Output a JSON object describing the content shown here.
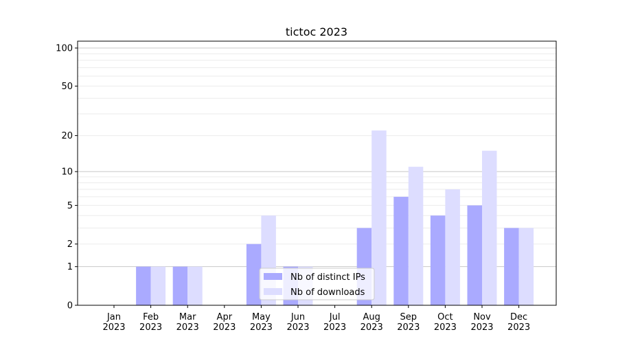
{
  "chart_data": {
    "type": "bar",
    "title": "tictoc 2023",
    "xlabel": "",
    "ylabel": "",
    "yscale": "log(1+y)",
    "ylim": [
      0,
      110
    ],
    "yticks": [
      0,
      1,
      2,
      5,
      10,
      20,
      50,
      100
    ],
    "grid": true,
    "legend_position": "bottom-center",
    "categories": [
      "Jan\n2023",
      "Feb\n2023",
      "Mar\n2023",
      "Apr\n2023",
      "May\n2023",
      "Jun\n2023",
      "Jul\n2023",
      "Aug\n2023",
      "Sep\n2023",
      "Oct\n2023",
      "Nov\n2023",
      "Dec\n2023"
    ],
    "series": [
      {
        "name": "Nb of distinct IPs",
        "color": "#aaaaff",
        "values": [
          0,
          1,
          1,
          0,
          2,
          1,
          0,
          3,
          6,
          4,
          5,
          3
        ]
      },
      {
        "name": "Nb of downloads",
        "color": "#ddddff",
        "values": [
          0,
          1,
          1,
          0,
          4,
          1,
          0,
          22,
          11,
          7,
          15,
          3
        ]
      }
    ]
  }
}
